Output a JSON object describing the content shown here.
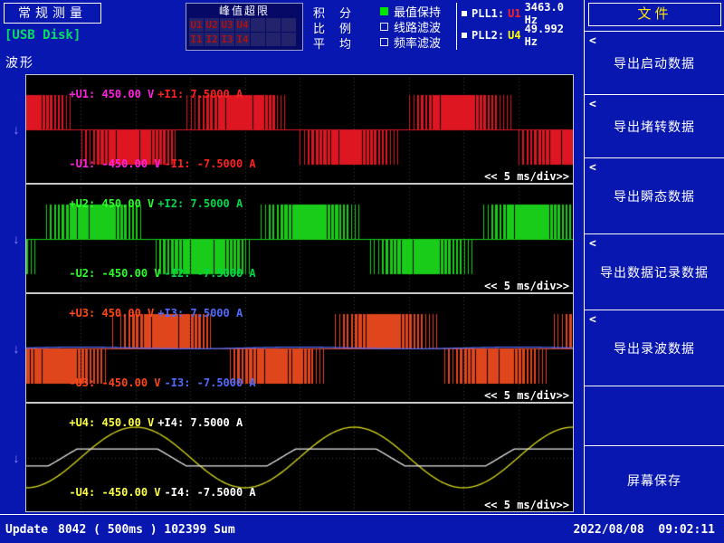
{
  "header": {
    "mode_label": "常规测量",
    "usb_label": "[USB Disk]",
    "section_label": "波形",
    "peak_box": {
      "title": "峰值超限",
      "u_cells": [
        "U1",
        "U2",
        "U3",
        "U4"
      ],
      "i_cells": [
        "I1",
        "I2",
        "I3",
        "I4"
      ]
    },
    "modes": [
      {
        "label_a": "积",
        "label_b": "分"
      },
      {
        "label_a": "比",
        "label_b": "例"
      },
      {
        "label_a": "平",
        "label_b": "均"
      }
    ],
    "toggles": [
      {
        "label": "最值保持",
        "on": true
      },
      {
        "label": "线路滤波",
        "on": false
      },
      {
        "label": "频率滤波",
        "on": false
      }
    ],
    "pll": [
      {
        "name": "PLL1:",
        "source": "U1",
        "source_color": "#ff2222",
        "value": "3463.0 Hz"
      },
      {
        "name": "PLL2:",
        "source": "U4",
        "source_color": "#ffff00",
        "value": "49.992 Hz"
      }
    ]
  },
  "sidebar": {
    "title": "文件",
    "items": [
      {
        "label": "导出启动数据",
        "chevron": "<"
      },
      {
        "label": "导出堵转数据",
        "chevron": "<"
      },
      {
        "label": "导出瞬态数据",
        "chevron": "<"
      },
      {
        "label": "导出数据记录数据",
        "chevron": "<"
      },
      {
        "label": "导出录波数据",
        "chevron": "<"
      },
      {
        "label": "",
        "chevron": ""
      },
      {
        "label": "屏幕保存",
        "chevron": ""
      }
    ]
  },
  "timebase": {
    "per_div": "5 ms/div",
    "divisions": 10,
    "window_ms": 50
  },
  "channels": [
    {
      "pos_u": "+U1: 450.00 V",
      "pos_i": "+I1: 7.5000 A",
      "neg_u": "-U1: -450.00 V",
      "neg_i": "-I1: -7.5000 A",
      "time_label": "<< 5 ms/div>>",
      "u_color": "#ff22e0",
      "i_color": "#ff2222",
      "window_ms": 50,
      "traces": [
        {
          "type": "pwm",
          "color": "#dd1622",
          "fundamental_hz": 50,
          "phase_deg": 100,
          "carrier_hz": 2800,
          "amp": 0.82
        }
      ]
    },
    {
      "pos_u": "+U2: 450.00 V",
      "pos_i": "+I2: 7.5000 A",
      "neg_u": "-U2: -450.00 V",
      "neg_i": "-I2: -7.5000 A",
      "time_label": "<< 5 ms/div>>",
      "u_color": "#2aff2a",
      "i_color": "#00d84a",
      "window_ms": 50,
      "traces": [
        {
          "type": "pwm",
          "color": "#19cc19",
          "fundamental_hz": 50,
          "phase_deg": -20,
          "carrier_hz": 2800,
          "amp": 0.82
        }
      ]
    },
    {
      "pos_u": "+U3: 450.00 V",
      "pos_i": "+I3: 7.5000 A",
      "neg_u": "-U3: -450.00 V",
      "neg_i": "-I3: -7.5000 A",
      "time_label": "<< 5 ms/div>>",
      "u_color": "#ff4818",
      "i_color": "#4f6cff",
      "window_ms": 50,
      "traces": [
        {
          "type": "pwm",
          "color": "#e0461c",
          "fundamental_hz": 50,
          "phase_deg": -140,
          "carrier_hz": 2800,
          "amp": 0.82
        },
        {
          "type": "sine",
          "color": "#4f6cff",
          "fundamental_hz": 50,
          "phase_deg": 0,
          "amp": 0.02
        }
      ]
    },
    {
      "pos_u": "+U4: 450.00 V",
      "pos_i": "+I4: 7.5000 A",
      "neg_u": "-U4: -450.00 V",
      "neg_i": "-I4: -7.5000 A",
      "time_label": "<< 5 ms/div>>",
      "u_color": "#ffff44",
      "i_color": "#ffffff",
      "window_ms": 50,
      "traces": [
        {
          "type": "sine",
          "color": "#d8d81a",
          "fundamental_hz": 50,
          "phase_deg": -90,
          "amp": 0.72
        },
        {
          "type": "sine",
          "color": "#e8e8e8",
          "fundamental_hz": 50,
          "phase_deg": -60,
          "amp": 0.5,
          "clip": 0.2
        }
      ]
    }
  ],
  "statusbar": {
    "update_label": "Update",
    "counter": "8042 ( 500ms ) 102399 Sum",
    "datetime": "2022/08/08  09:02:11"
  },
  "colors": {
    "background": "#0817b0",
    "panel": "#000000",
    "grid": "#3d3d3d",
    "border": "#ffffff",
    "sidebar_title": "#ffe600",
    "usb_green": "#00e060",
    "toggle_on": "#00e800",
    "peak_text": "#b01010",
    "peak_cell_bg": "#23236b",
    "trigger_arrow": "#8f85ff"
  }
}
